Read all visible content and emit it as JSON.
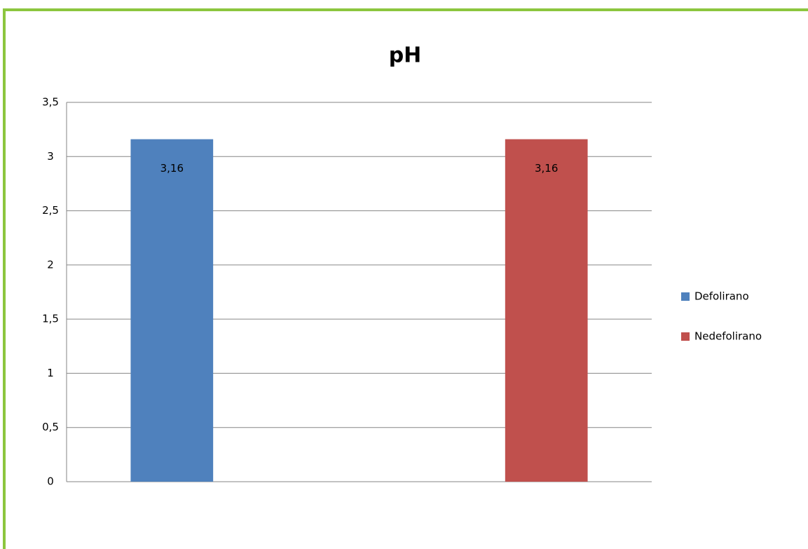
{
  "chart_data": {
    "type": "bar",
    "title": "pH",
    "categories": [
      null
    ],
    "series": [
      {
        "name": "Defolirano",
        "color": "#4f81bd",
        "values": [
          3.16
        ],
        "value_labels": [
          "3,16"
        ]
      },
      {
        "name": "Nedefolirano",
        "color": "#c0504d",
        "values": [
          3.16
        ],
        "value_labels": [
          "3,16"
        ]
      }
    ],
    "ylim": [
      0,
      3.5
    ],
    "yticks": [
      0,
      {
        "value": 0.5,
        "label": "0,5"
      },
      1,
      {
        "value": 1.5,
        "label": "1,5"
      },
      2,
      {
        "value": 2.5,
        "label": "2,5"
      },
      3,
      {
        "value": 3.5,
        "label": "3,5"
      }
    ],
    "grid": true,
    "legend": "right"
  }
}
